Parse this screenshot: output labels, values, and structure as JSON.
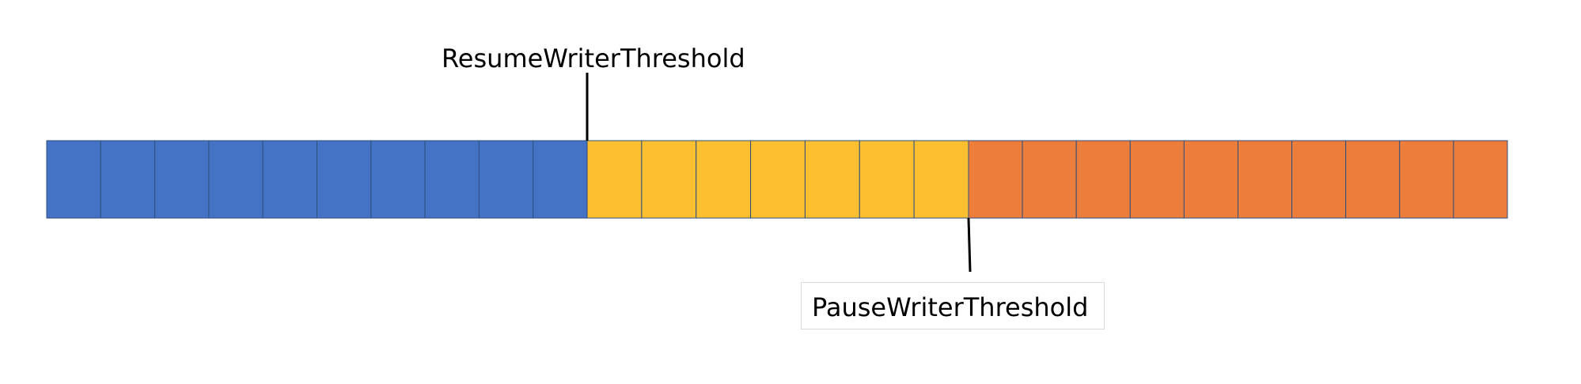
{
  "labels": {
    "resume": "ResumeWriterThreshold",
    "pause": "PauseWriterThreshold"
  },
  "segments": [
    {
      "name": "below-resume",
      "color": "#4472C4",
      "cells": 10
    },
    {
      "name": "between-thresholds",
      "color": "#FBBF2F",
      "cells": 7
    },
    {
      "name": "above-pause",
      "color": "#ED7D3B",
      "cells": 10
    }
  ],
  "colors": {
    "cell_border": "#2F4F7F",
    "marker": "#000000",
    "box_border": "#d9d9d9"
  }
}
